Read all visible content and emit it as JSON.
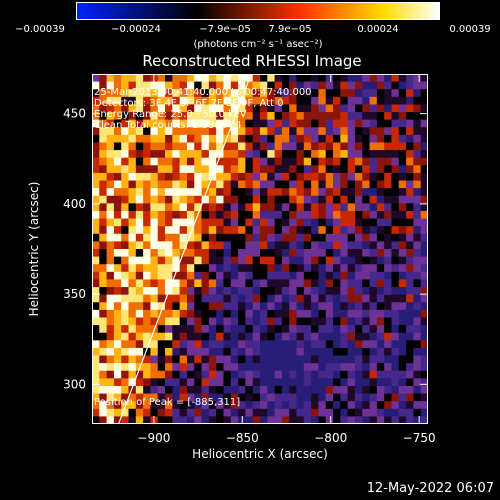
{
  "colorbar": {
    "tick_labels": [
      "−0.00039",
      "−0.00024",
      "−7.9e−05",
      "7.9e−05",
      "0.00024",
      "0.00039"
    ],
    "unit_label": "(photons cm⁻² s⁻¹ asec⁻²)",
    "colors": [
      "#0022ff",
      "#000000",
      "#ff3300",
      "#ffdd00",
      "#ffffff"
    ]
  },
  "chart_data": {
    "type": "heatmap",
    "title": "Reconstructed RHESSI Image",
    "xlabel": "Heliocentric X (arcsec)",
    "ylabel": "Heliocentric Y (arcsec)",
    "xlim": [
      -935,
      -745
    ],
    "ylim": [
      278,
      472
    ],
    "xticks": [
      -900,
      -850,
      -800,
      -750
    ],
    "yticks": [
      300,
      350,
      400,
      450
    ],
    "xtick_labels": [
      "−900",
      "−850",
      "−800",
      "−750"
    ],
    "ytick_labels": [
      "300",
      "350",
      "400",
      "450"
    ],
    "limb_line": {
      "x": [
        -920,
        -845
      ],
      "y": [
        278,
        472
      ]
    },
    "peak": {
      "x": -885,
      "y": 311
    },
    "grid": false
  },
  "annotations": {
    "time_range": "25-Mar-2013 00:41:40.000 to 00:47:40.000",
    "detectors": "Detectors: 3F 4F 5F 6F 7F 8F 9F, Att 0",
    "energy": "Energy Range: 25.0 - 50.0 keV",
    "algorithm": "Clean    Total counts: 1.58e+04",
    "peak_position": "Position of Peak = [-885,311]"
  },
  "footer": {
    "date": "12-May-2022 06:07"
  }
}
